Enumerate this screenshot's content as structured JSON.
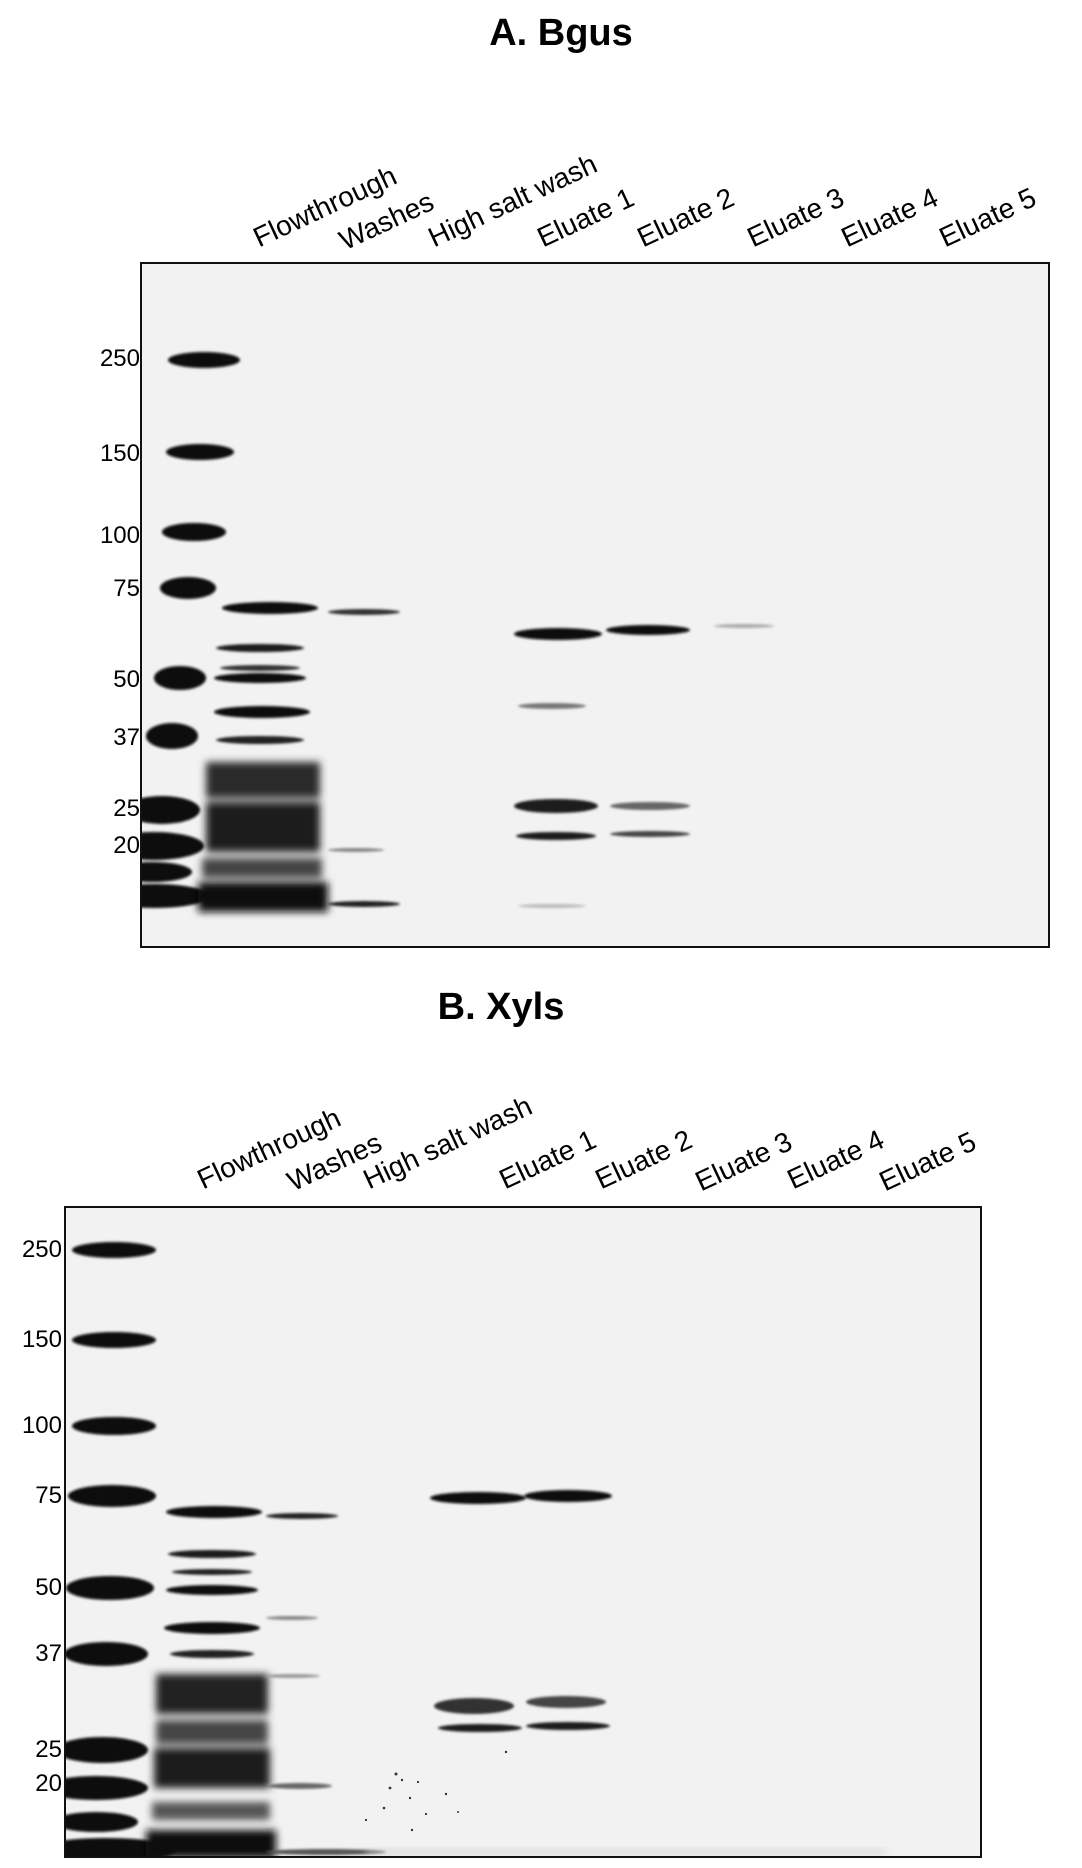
{
  "panels": [
    {
      "id": "a",
      "title": "A. Bgus",
      "lanes": [
        "Flowthrough",
        "Washes",
        "High salt wash",
        "Eluate 1",
        "Eluate 2",
        "Eluate 3",
        "Eluate 4",
        "Eluate 5"
      ],
      "markers": [
        "250",
        "150",
        "100",
        "75",
        "50",
        "37",
        "25",
        "20"
      ]
    },
    {
      "id": "b",
      "title": "B. Xyls",
      "lanes": [
        "Flowthrough",
        "Washes",
        "High salt wash",
        "Eluate 1",
        "Eluate 2",
        "Eluate 3",
        "Eluate 4",
        "Eluate 5"
      ],
      "markers": [
        "250",
        "150",
        "100",
        "75",
        "50",
        "37",
        "25",
        "20"
      ]
    }
  ]
}
